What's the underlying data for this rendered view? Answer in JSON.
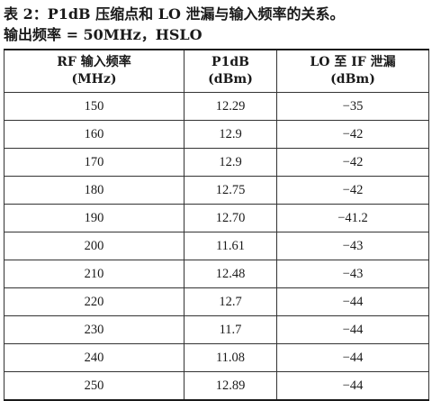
{
  "caption": {
    "line1": "表 2：P1dB 压缩点和 LO 泄漏与输入频率的关系。",
    "line2": "输出频率 = 50MHz，HSLO"
  },
  "table": {
    "headers": [
      {
        "line1": "RF 输入频率",
        "line2": "(MHz)"
      },
      {
        "line1": "P1dB",
        "line2": "(dBm)"
      },
      {
        "line1": "LO 至 IF 泄漏",
        "line2": "(dBm)"
      }
    ],
    "rows": [
      [
        "150",
        "12.29",
        "−35"
      ],
      [
        "160",
        "12.9",
        "−42"
      ],
      [
        "170",
        "12.9",
        "−42"
      ],
      [
        "180",
        "12.75",
        "−42"
      ],
      [
        "190",
        "12.70",
        "−41.2"
      ],
      [
        "200",
        "11.61",
        "−43"
      ],
      [
        "210",
        "12.48",
        "−43"
      ],
      [
        "220",
        "12.7",
        "−44"
      ],
      [
        "230",
        "11.7",
        "−44"
      ],
      [
        "240",
        "11.08",
        "−44"
      ],
      [
        "250",
        "12.89",
        "−44"
      ]
    ]
  }
}
